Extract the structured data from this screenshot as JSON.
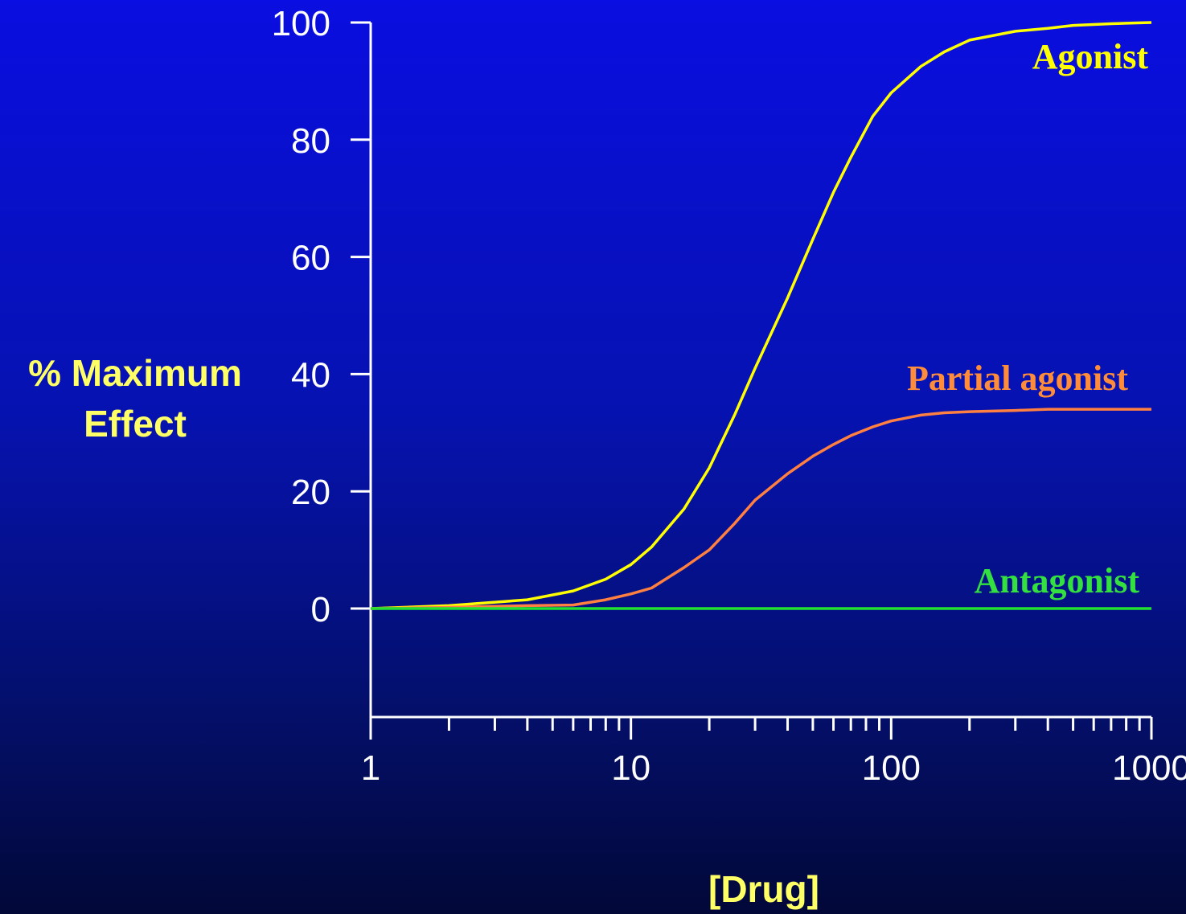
{
  "chart_data": {
    "type": "line",
    "x_scale": "log",
    "xlim": [
      1,
      1000
    ],
    "ylim": [
      -18,
      100
    ],
    "xlabel": "[Drug]",
    "ylabel_lines": [
      "% Maximum",
      "Effect"
    ],
    "x_ticks": [
      {
        "value": 1,
        "label": "1"
      },
      {
        "value": 10,
        "label": "10"
      },
      {
        "value": 100,
        "label": "100"
      },
      {
        "value": 1000,
        "label": "1000"
      }
    ],
    "y_ticks": [
      {
        "value": 0,
        "label": "0"
      },
      {
        "value": 20,
        "label": "20"
      },
      {
        "value": 40,
        "label": "40"
      },
      {
        "value": 60,
        "label": "60"
      },
      {
        "value": 80,
        "label": "80"
      },
      {
        "value": 100,
        "label": "100"
      }
    ],
    "grid": false,
    "series": [
      {
        "name": "Agonist",
        "color": "#ffff00",
        "label_color": "#ffff00",
        "x": [
          1,
          2,
          4,
          6,
          8,
          10,
          12,
          16,
          20,
          25,
          30,
          40,
          50,
          60,
          70,
          85,
          100,
          130,
          160,
          200,
          300,
          400,
          500,
          700,
          1000
        ],
        "y": [
          0,
          0.5,
          1.5,
          3,
          5,
          7.5,
          10.5,
          17,
          24,
          33,
          41,
          53,
          63,
          71,
          77,
          84,
          88,
          92.5,
          95,
          97,
          98.5,
          99,
          99.5,
          99.8,
          100
        ]
      },
      {
        "name": "Partial agonist",
        "color": "#ff8040",
        "label_color": "#ff8c3a",
        "x": [
          1,
          2,
          4,
          6,
          8,
          10,
          12,
          16,
          20,
          25,
          30,
          40,
          50,
          60,
          70,
          85,
          100,
          130,
          160,
          200,
          300,
          400,
          700,
          1000
        ],
        "y": [
          0,
          0.2,
          0.5,
          0.6,
          1.5,
          2.5,
          3.5,
          7,
          10,
          14.5,
          18.5,
          23,
          26,
          28,
          29.5,
          31,
          32,
          33,
          33.4,
          33.6,
          33.8,
          34,
          34,
          34
        ]
      },
      {
        "name": "Antagonist",
        "color": "#22e030",
        "label_color": "#33e040",
        "x": [
          1,
          1000
        ],
        "y": [
          0,
          0
        ]
      }
    ]
  }
}
